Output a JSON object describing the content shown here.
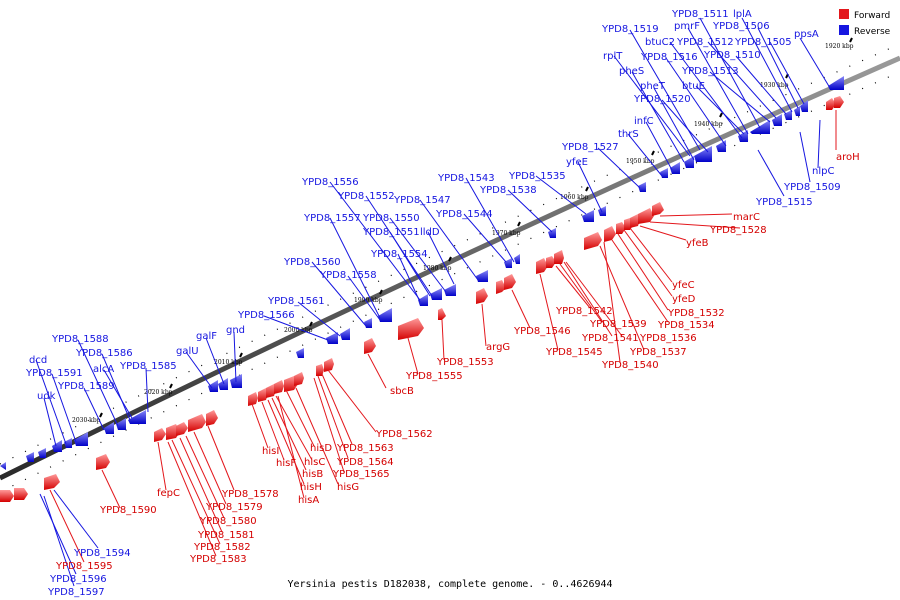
{
  "caption": "Yersinia pestis D182038, complete genome. - 0..4626944",
  "legend": {
    "items": [
      {
        "label": "Forward",
        "color": "#e3171c"
      },
      {
        "label": "Reverse",
        "color": "#1616e0"
      }
    ]
  },
  "colors": {
    "forward": "#e3171c",
    "forward_light": "#ff8d8d",
    "reverse": "#1616e0",
    "reverse_light": "#7d7df5",
    "backbone": "#3a3a3a",
    "tick": "#000000"
  },
  "kbp_markers": [
    {
      "label": "2030 kbp"
    },
    {
      "label": "2020 kbp"
    },
    {
      "label": "2010 kbp"
    },
    {
      "label": "2000 kbp"
    },
    {
      "label": "1990 kbp"
    },
    {
      "label": "1980 kbp"
    },
    {
      "label": "1970 kbp"
    },
    {
      "label": "1960 kbp"
    },
    {
      "label": "1950 kbp"
    },
    {
      "label": "1940 kbp"
    },
    {
      "label": "1930 kbp"
    },
    {
      "label": "1920 kbp"
    }
  ],
  "reverse_labels": [
    "YPD8_1511",
    "lplA",
    "YPD8_1506",
    "ppsA",
    "pmrF",
    "YPD8_1519",
    "btuC2",
    "YPD8_1512",
    "YPD8_1505",
    "YPD8_1516",
    "YPD8_1510",
    "rplT",
    "pheS",
    "YPD8_1513",
    "pheT",
    "btuE",
    "YPD8_1520",
    "infC",
    "thrS",
    "YPD8_1527",
    "yfeE",
    "YPD8_1543",
    "YPD8_1535",
    "YPD8_1538",
    "YPD8_1556",
    "YPD8_1552",
    "YPD8_1547",
    "YPD8_1544",
    "YPD8_1557",
    "YPD8_1550",
    "YPD8_1551",
    "lldD",
    "YPD8_1554",
    "YPD8_1560",
    "YPD8_1558",
    "YPD8_1561",
    "YPD8_1566",
    "galF",
    "gnd",
    "galU",
    "YPD8_1588",
    "YPD8_1586",
    "dcd",
    "alcA",
    "YPD8_1585",
    "YPD8_1591",
    "YPD8_1589",
    "udk",
    "nlpC",
    "YPD8_1509",
    "YPD8_1515",
    "YPD8_1594",
    "YPD8_1596",
    "YPD8_1597"
  ],
  "forward_labels": [
    "aroH",
    "marC",
    "YPD8_1528",
    "yfeB",
    "yfeC",
    "yfeD",
    "YPD8_1532",
    "YPD8_1534",
    "YPD8_1542",
    "YPD8_1539",
    "YPD8_1541",
    "YPD8_1536",
    "YPD8_1537",
    "YPD8_1546",
    "YPD8_1545",
    "YPD8_1540",
    "argG",
    "YPD8_1553",
    "YPD8_1555",
    "sbcB",
    "YPD8_1562",
    "YPD8_1563",
    "YPD8_1564",
    "YPD8_1565",
    "hisG",
    "hisD",
    "hisI",
    "hisC",
    "hisF",
    "hisB",
    "hisH",
    "hisA",
    "fepC",
    "YPD8_1578",
    "YPD8_1579",
    "YPD8_1580",
    "YPD8_1581",
    "YPD8_1582",
    "YPD8_1583",
    "YPD8_1590",
    "YPD8_1595"
  ]
}
